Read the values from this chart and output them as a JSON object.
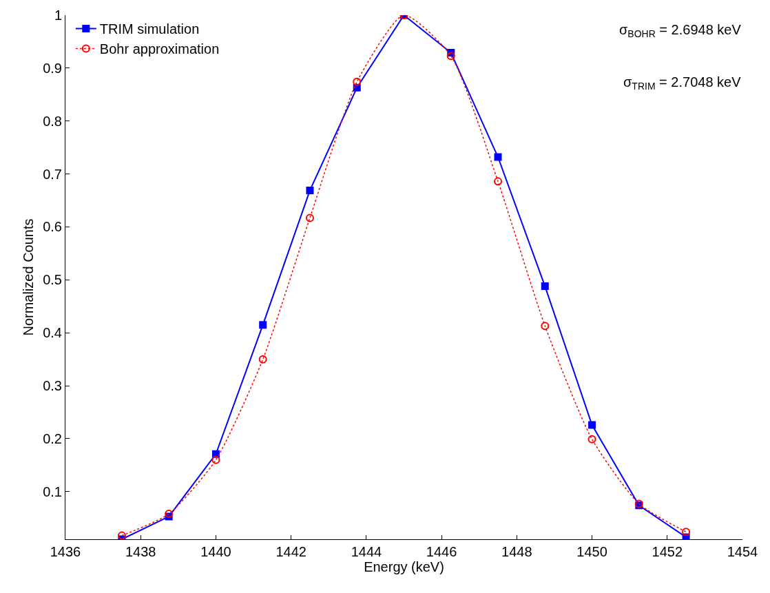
{
  "chart_data": {
    "type": "line",
    "xlabel": "Energy (keV)",
    "ylabel": "Normalized Counts",
    "x": [
      1437.5,
      1438.75,
      1440,
      1441.25,
      1442.5,
      1443.75,
      1445,
      1446.25,
      1447.5,
      1448.75,
      1450,
      1451.25,
      1452.5
    ],
    "series": [
      {
        "name": "TRIM simulation",
        "color": "#0000ff",
        "marker": "square",
        "line_style": "solid",
        "values": [
          0.01,
          0.053,
          0.171,
          0.415,
          0.669,
          0.863,
          1.0,
          0.929,
          0.732,
          0.488,
          0.226,
          0.074,
          0.014
        ]
      },
      {
        "name": "Bohr approximation",
        "color": "#ff0000",
        "marker": "circle",
        "line_style": "dotted",
        "values": [
          0.017,
          0.058,
          0.16,
          0.35,
          0.617,
          0.874,
          1.0,
          0.923,
          0.686,
          0.413,
          0.199,
          0.077,
          0.024
        ]
      }
    ],
    "xlim": [
      1436,
      1454
    ],
    "xticks": [
      1436,
      1438,
      1440,
      1442,
      1444,
      1446,
      1448,
      1450,
      1452,
      1454
    ],
    "ylim": [
      0.01,
      1
    ],
    "yticks": [
      0.1,
      0.2,
      0.3,
      0.4,
      0.5,
      0.6,
      0.7,
      0.8,
      0.9,
      1
    ],
    "annotations": [
      "σ$_{BOHR}$ = 2.6948 keV",
      "σ$_{TRIM}$ = 2.7048 keV"
    ],
    "legend": "top left"
  }
}
